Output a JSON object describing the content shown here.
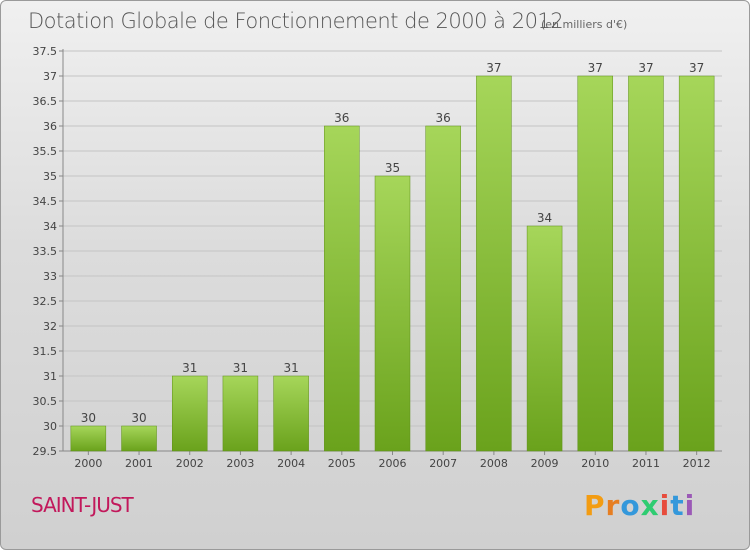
{
  "header": {
    "title": "Dotation Globale de Fonctionnement de 2000 à 2012",
    "unit": "(en milliers d'€)"
  },
  "footer": {
    "commune": "SAINT-JUST",
    "logo_text": "Proxiti"
  },
  "colors": {
    "bar_light": "#a6d65a",
    "bar_dark": "#6aa21c",
    "grid": "#c4c4c4",
    "commune": "#c2185b",
    "logo_letters": [
      "#f39c12",
      "#e67e22",
      "#3498db",
      "#2ecc71",
      "#e74c3c",
      "#3498db",
      "#9b59b6"
    ]
  },
  "chart_data": {
    "type": "bar",
    "categories": [
      "2000",
      "2001",
      "2002",
      "2003",
      "2004",
      "2005",
      "2006",
      "2007",
      "2008",
      "2009",
      "2010",
      "2011",
      "2012"
    ],
    "values": [
      30,
      30,
      31,
      31,
      31,
      36,
      35,
      36,
      37,
      34,
      37,
      37,
      37
    ],
    "data_labels": [
      "30",
      "30",
      "31",
      "31",
      "31",
      "36",
      "35",
      "36",
      "37",
      "34",
      "37",
      "37",
      "37"
    ],
    "yticks": [
      "29.5",
      "30",
      "30.5",
      "31",
      "31.5",
      "32",
      "32.5",
      "33",
      "33.5",
      "34",
      "34.5",
      "35",
      "35.5",
      "36",
      "36.5",
      "37",
      "37.5"
    ],
    "ylim": [
      29.5,
      37.5
    ],
    "grid": true,
    "legend": "none"
  }
}
